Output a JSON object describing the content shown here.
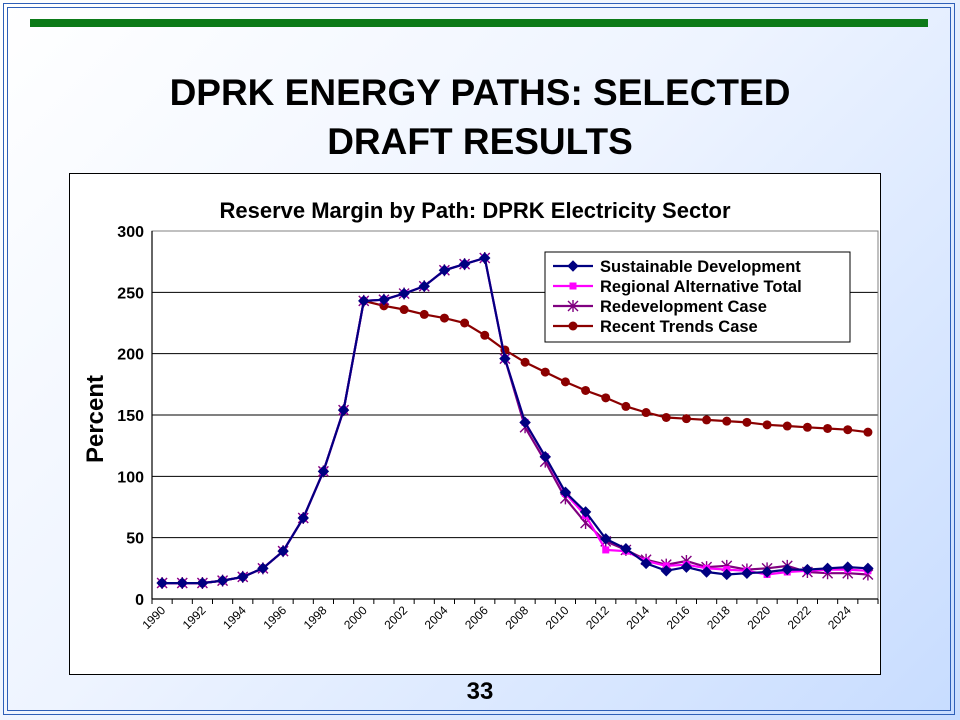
{
  "slide": {
    "title_line1": "DPRK ENERGY PATHS: SELECTED",
    "title_line2": "DRAFT RESULTS",
    "page_number": "33"
  },
  "chart_data": {
    "type": "line",
    "title": "Reserve Margin by Path: DPRK Electricity Sector",
    "ylabel": "Percent",
    "xlabel": "",
    "ylim": [
      0,
      300
    ],
    "yticks": [
      0,
      50,
      100,
      150,
      200,
      250,
      300
    ],
    "grid": true,
    "legend_position": "top-right",
    "x": [
      1990,
      1991,
      1992,
      1993,
      1994,
      1995,
      1996,
      1997,
      1998,
      1999,
      2000,
      2001,
      2002,
      2003,
      2004,
      2005,
      2006,
      2007,
      2008,
      2009,
      2010,
      2011,
      2012,
      2013,
      2014,
      2015,
      2016,
      2017,
      2018,
      2019,
      2020,
      2021,
      2022,
      2023,
      2024,
      2025
    ],
    "xtick_labels": [
      "1990",
      "1992",
      "1994",
      "1996",
      "1998",
      "2000",
      "2002",
      "2004",
      "2006",
      "2008",
      "2010",
      "2012",
      "2014",
      "2016",
      "2018",
      "2020",
      "2022",
      "2024"
    ],
    "series": [
      {
        "name": "Sustainable Development",
        "color": "#000080",
        "marker": "diamond",
        "values": [
          13,
          13,
          13,
          15,
          18,
          25,
          39,
          66,
          104,
          154,
          243,
          244,
          249,
          255,
          268,
          273,
          278,
          196,
          144,
          116,
          87,
          71,
          49,
          41,
          29,
          23,
          26,
          22,
          20,
          21,
          22,
          24,
          24,
          25,
          26,
          25
        ]
      },
      {
        "name": "Regional Alternative Total",
        "color": "#ff00ff",
        "marker": "square",
        "values": [
          13,
          13,
          13,
          15,
          18,
          25,
          39,
          66,
          104,
          154,
          243,
          244,
          249,
          255,
          268,
          273,
          278,
          196,
          144,
          116,
          86,
          68,
          40,
          39,
          31,
          27,
          28,
          25,
          24,
          23,
          20,
          22,
          23,
          24,
          24,
          23
        ]
      },
      {
        "name": "Redevelopment Case",
        "color": "#800080",
        "marker": "x",
        "values": [
          13,
          13,
          13,
          15,
          18,
          25,
          39,
          66,
          104,
          154,
          243,
          244,
          249,
          255,
          268,
          273,
          278,
          196,
          140,
          112,
          82,
          62,
          47,
          40,
          32,
          28,
          31,
          26,
          27,
          24,
          25,
          27,
          22,
          21,
          21,
          20
        ]
      },
      {
        "name": "Recent Trends Case",
        "color": "#8b0000",
        "marker": "circle",
        "values": [
          13,
          13,
          13,
          15,
          18,
          25,
          39,
          66,
          104,
          154,
          243,
          239,
          236,
          232,
          229,
          225,
          215,
          203,
          193,
          185,
          177,
          170,
          164,
          157,
          152,
          148,
          147,
          146,
          145,
          144,
          142,
          141,
          140,
          139,
          138,
          136
        ]
      }
    ]
  }
}
